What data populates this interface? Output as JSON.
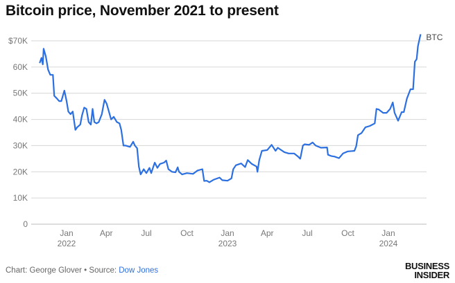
{
  "title": "Bitcoin price, November 2021 to present",
  "footer": {
    "chart_label": "Chart:",
    "author": "George Glover",
    "bullet": "•",
    "source_label": "Source:",
    "source": "Dow Jones"
  },
  "logo": {
    "line1": "BUSINESS",
    "line2": "INSIDER"
  },
  "colors": {
    "line": "#2b6fe0",
    "grid": "#d6d6d6",
    "link": "#2f6fdb"
  },
  "chart_data": {
    "type": "line",
    "title": "Bitcoin price, November 2021 to present",
    "xlabel": "",
    "ylabel": "",
    "ylim": [
      0,
      70000
    ],
    "y_ticks": [
      {
        "v": 0,
        "label": "0"
      },
      {
        "v": 10000,
        "label": "10K"
      },
      {
        "v": 20000,
        "label": "20K"
      },
      {
        "v": 30000,
        "label": "30K"
      },
      {
        "v": 40000,
        "label": "40K"
      },
      {
        "v": 50000,
        "label": "50K"
      },
      {
        "v": 60000,
        "label": "60K"
      },
      {
        "v": 70000,
        "label": "$70K"
      }
    ],
    "x_ticks": [
      {
        "date": "2022-01-01",
        "label": "Jan",
        "year": "2022"
      },
      {
        "date": "2022-04-01",
        "label": "Apr"
      },
      {
        "date": "2022-07-01",
        "label": "Jul"
      },
      {
        "date": "2022-10-01",
        "label": "Oct"
      },
      {
        "date": "2023-01-01",
        "label": "Jan",
        "year": "2023"
      },
      {
        "date": "2023-04-01",
        "label": "Apr"
      },
      {
        "date": "2023-07-01",
        "label": "Jul"
      },
      {
        "date": "2023-10-01",
        "label": "Oct"
      },
      {
        "date": "2024-01-01",
        "label": "Jan",
        "year": "2024"
      }
    ],
    "grid": true,
    "series": [
      {
        "name": "BTC",
        "points": [
          [
            "2021-11-01",
            61500
          ],
          [
            "2021-11-05",
            63500
          ],
          [
            "2021-11-08",
            61000
          ],
          [
            "2021-11-10",
            67000
          ],
          [
            "2021-11-15",
            64000
          ],
          [
            "2021-11-20",
            59000
          ],
          [
            "2021-11-25",
            57000
          ],
          [
            "2021-12-01",
            57000
          ],
          [
            "2021-12-04",
            49000
          ],
          [
            "2021-12-10",
            48000
          ],
          [
            "2021-12-15",
            47000
          ],
          [
            "2021-12-20",
            47000
          ],
          [
            "2021-12-27",
            51000
          ],
          [
            "2022-01-01",
            47000
          ],
          [
            "2022-01-05",
            43000
          ],
          [
            "2022-01-10",
            42000
          ],
          [
            "2022-01-15",
            43000
          ],
          [
            "2022-01-21",
            36000
          ],
          [
            "2022-01-25",
            37000
          ],
          [
            "2022-02-01",
            38000
          ],
          [
            "2022-02-05",
            41500
          ],
          [
            "2022-02-10",
            44500
          ],
          [
            "2022-02-15",
            44000
          ],
          [
            "2022-02-20",
            39000
          ],
          [
            "2022-02-25",
            38000
          ],
          [
            "2022-03-01",
            44000
          ],
          [
            "2022-03-05",
            39000
          ],
          [
            "2022-03-10",
            38500
          ],
          [
            "2022-03-15",
            39000
          ],
          [
            "2022-03-22",
            42000
          ],
          [
            "2022-03-28",
            47500
          ],
          [
            "2022-04-02",
            46000
          ],
          [
            "2022-04-07",
            43000
          ],
          [
            "2022-04-12",
            40000
          ],
          [
            "2022-04-18",
            41000
          ],
          [
            "2022-04-25",
            39000
          ],
          [
            "2022-05-01",
            38500
          ],
          [
            "2022-05-05",
            36000
          ],
          [
            "2022-05-10",
            30000
          ],
          [
            "2022-05-15",
            30000
          ],
          [
            "2022-05-25",
            29500
          ],
          [
            "2022-06-01",
            31500
          ],
          [
            "2022-06-05",
            30000
          ],
          [
            "2022-06-10",
            29000
          ],
          [
            "2022-06-14",
            22000
          ],
          [
            "2022-06-18",
            19000
          ],
          [
            "2022-06-25",
            21000
          ],
          [
            "2022-07-01",
            19500
          ],
          [
            "2022-07-08",
            21500
          ],
          [
            "2022-07-12",
            19500
          ],
          [
            "2022-07-20",
            23500
          ],
          [
            "2022-07-26",
            21500
          ],
          [
            "2022-08-01",
            23000
          ],
          [
            "2022-08-10",
            23500
          ],
          [
            "2022-08-15",
            24300
          ],
          [
            "2022-08-20",
            21000
          ],
          [
            "2022-08-28",
            20000
          ],
          [
            "2022-09-05",
            19800
          ],
          [
            "2022-09-10",
            21700
          ],
          [
            "2022-09-13",
            20000
          ],
          [
            "2022-09-20",
            19000
          ],
          [
            "2022-10-01",
            19500
          ],
          [
            "2022-10-15",
            19200
          ],
          [
            "2022-10-25",
            20500
          ],
          [
            "2022-11-05",
            21000
          ],
          [
            "2022-11-09",
            16500
          ],
          [
            "2022-11-15",
            16600
          ],
          [
            "2022-11-21",
            16000
          ],
          [
            "2022-12-01",
            17000
          ],
          [
            "2022-12-14",
            17800
          ],
          [
            "2022-12-20",
            16800
          ],
          [
            "2023-01-01",
            16600
          ],
          [
            "2023-01-10",
            17500
          ],
          [
            "2023-01-14",
            21000
          ],
          [
            "2023-01-20",
            22500
          ],
          [
            "2023-02-01",
            23200
          ],
          [
            "2023-02-10",
            21800
          ],
          [
            "2023-02-16",
            24500
          ],
          [
            "2023-02-25",
            23000
          ],
          [
            "2023-03-08",
            22000
          ],
          [
            "2023-03-10",
            20000
          ],
          [
            "2023-03-14",
            24500
          ],
          [
            "2023-03-20",
            28000
          ],
          [
            "2023-04-01",
            28300
          ],
          [
            "2023-04-11",
            30300
          ],
          [
            "2023-04-20",
            28000
          ],
          [
            "2023-04-25",
            29200
          ],
          [
            "2023-05-01",
            28500
          ],
          [
            "2023-05-10",
            27500
          ],
          [
            "2023-05-20",
            27000
          ],
          [
            "2023-06-01",
            27000
          ],
          [
            "2023-06-10",
            25800
          ],
          [
            "2023-06-15",
            25000
          ],
          [
            "2023-06-21",
            30000
          ],
          [
            "2023-06-25",
            30500
          ],
          [
            "2023-07-05",
            30300
          ],
          [
            "2023-07-13",
            31200
          ],
          [
            "2023-07-20",
            30000
          ],
          [
            "2023-08-01",
            29200
          ],
          [
            "2023-08-15",
            29300
          ],
          [
            "2023-08-17",
            26500
          ],
          [
            "2023-08-25",
            26000
          ],
          [
            "2023-09-01",
            25800
          ],
          [
            "2023-09-11",
            25200
          ],
          [
            "2023-09-20",
            27000
          ],
          [
            "2023-10-01",
            27800
          ],
          [
            "2023-10-16",
            28000
          ],
          [
            "2023-10-20",
            29800
          ],
          [
            "2023-10-24",
            34000
          ],
          [
            "2023-11-01",
            34800
          ],
          [
            "2023-11-10",
            37000
          ],
          [
            "2023-11-20",
            37500
          ],
          [
            "2023-12-01",
            38500
          ],
          [
            "2023-12-05",
            44000
          ],
          [
            "2023-12-10",
            43800
          ],
          [
            "2023-12-20",
            42500
          ],
          [
            "2023-12-28",
            42500
          ],
          [
            "2024-01-05",
            44000
          ],
          [
            "2024-01-11",
            46500
          ],
          [
            "2024-01-15",
            42500
          ],
          [
            "2024-01-23",
            39500
          ],
          [
            "2024-01-31",
            42800
          ],
          [
            "2024-02-05",
            42800
          ],
          [
            "2024-02-12",
            48000
          ],
          [
            "2024-02-20",
            51500
          ],
          [
            "2024-02-26",
            51500
          ],
          [
            "2024-03-01",
            62000
          ],
          [
            "2024-03-05",
            63000
          ],
          [
            "2024-03-08",
            68000
          ],
          [
            "2024-03-12",
            71000
          ],
          [
            "2024-03-14",
            72500
          ]
        ]
      }
    ]
  }
}
